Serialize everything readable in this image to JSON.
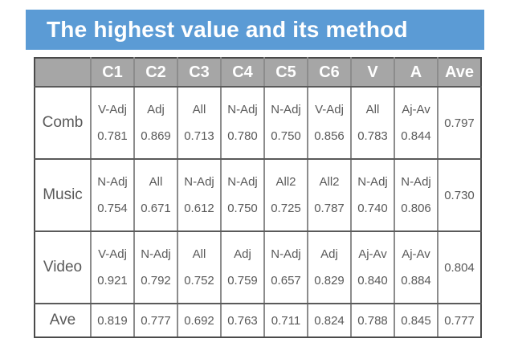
{
  "slide": {
    "title": "The highest value and its method"
  },
  "colors": {
    "title_bg": "#5b9bd5",
    "title_text": "#ffffff",
    "header_bg": "#a6a6a6",
    "header_text": "#ffffff",
    "cell_text": "#595959",
    "grid_line": "#8c8c8c",
    "outer_border": "#4a4a4a",
    "page_bg": "#ffffff"
  },
  "table": {
    "columns": [
      "",
      "C1",
      "C2",
      "C3",
      "C4",
      "C5",
      "C6",
      "V",
      "A",
      "Ave"
    ],
    "rows": [
      {
        "label": "Comb",
        "cells": [
          {
            "method": "V-Adj",
            "value": "0.781"
          },
          {
            "method": "Adj",
            "value": "0.869"
          },
          {
            "method": "All",
            "value": "0.713"
          },
          {
            "method": "N-Adj",
            "value": "0.780"
          },
          {
            "method": "N-Adj",
            "value": "0.750"
          },
          {
            "method": "V-Adj",
            "value": "0.856"
          },
          {
            "method": "All",
            "value": "0.783"
          },
          {
            "method": "Aj-Av",
            "value": "0.844"
          }
        ],
        "ave": "0.797"
      },
      {
        "label": "Music",
        "cells": [
          {
            "method": "N-Adj",
            "value": "0.754"
          },
          {
            "method": "All",
            "value": "0.671"
          },
          {
            "method": "N-Adj",
            "value": "0.612"
          },
          {
            "method": "N-Adj",
            "value": "0.750"
          },
          {
            "method": "All2",
            "value": "0.725"
          },
          {
            "method": "All2",
            "value": "0.787"
          },
          {
            "method": "N-Adj",
            "value": "0.740"
          },
          {
            "method": "N-Adj",
            "value": "0.806"
          }
        ],
        "ave": "0.730"
      },
      {
        "label": "Video",
        "cells": [
          {
            "method": "V-Adj",
            "value": "0.921"
          },
          {
            "method": "N-Adj",
            "value": "0.792"
          },
          {
            "method": "All",
            "value": "0.752"
          },
          {
            "method": "Adj",
            "value": "0.759"
          },
          {
            "method": "N-Adj",
            "value": "0.657"
          },
          {
            "method": "Adj",
            "value": "0.829"
          },
          {
            "method": "Aj-Av",
            "value": "0.840"
          },
          {
            "method": "Aj-Av",
            "value": "0.884"
          }
        ],
        "ave": "0.804"
      }
    ],
    "footer": {
      "label": "Ave",
      "values": [
        "0.819",
        "0.777",
        "0.692",
        "0.763",
        "0.711",
        "0.824",
        "0.788",
        "0.845",
        "0.777"
      ]
    }
  }
}
